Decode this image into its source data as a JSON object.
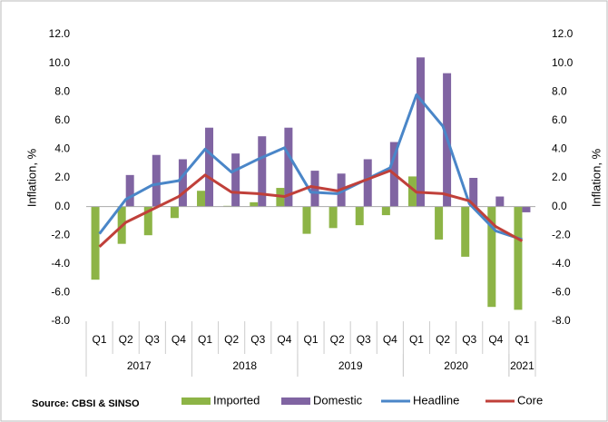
{
  "chart_data": {
    "type": "bar_line",
    "categories": [
      "Q1",
      "Q2",
      "Q3",
      "Q4",
      "Q1",
      "Q2",
      "Q3",
      "Q4",
      "Q1",
      "Q2",
      "Q3",
      "Q4",
      "Q1",
      "Q2",
      "Q3",
      "Q4",
      "Q1"
    ],
    "groups": [
      {
        "label": "2017",
        "count": 4
      },
      {
        "label": "2018",
        "count": 4
      },
      {
        "label": "2019",
        "count": 4
      },
      {
        "label": "2020",
        "count": 4
      },
      {
        "label": "2021",
        "count": 1
      }
    ],
    "series": [
      {
        "name": "Imported",
        "kind": "bar",
        "color": "#8db446",
        "values": [
          -5.1,
          -2.6,
          -2.0,
          -0.8,
          1.1,
          0.05,
          0.3,
          1.3,
          -1.9,
          -1.5,
          -1.3,
          -0.6,
          2.1,
          -2.3,
          -3.5,
          -7.0,
          -7.2
        ]
      },
      {
        "name": "Domestic",
        "kind": "bar",
        "color": "#8064a2",
        "values": [
          0,
          2.2,
          3.6,
          3.3,
          5.5,
          3.7,
          4.9,
          5.5,
          2.5,
          2.3,
          3.3,
          4.5,
          10.4,
          9.3,
          2.0,
          0.7,
          -0.4
        ]
      },
      {
        "name": "Headline",
        "kind": "line",
        "color": "#4a86c8",
        "values": [
          -1.9,
          0.5,
          1.5,
          1.8,
          4.0,
          2.4,
          3.3,
          4.1,
          1.0,
          0.9,
          1.8,
          2.7,
          7.8,
          5.6,
          0.2,
          -1.7,
          -2.3
        ]
      },
      {
        "name": "Core",
        "kind": "line",
        "color": "#c0403a",
        "values": [
          -2.8,
          -1.1,
          -0.2,
          0.7,
          2.2,
          1.0,
          0.9,
          0.7,
          1.4,
          1.1,
          1.8,
          2.5,
          1.0,
          0.9,
          0.4,
          -1.4,
          -2.4
        ]
      }
    ],
    "ylabel": "Inflation, %",
    "y2label": "Inflation, %",
    "ylim": [
      -8,
      12
    ],
    "yticks": [
      {
        "value": -8,
        "label": "-8.0"
      },
      {
        "value": -6,
        "label": "-6.0"
      },
      {
        "value": -4,
        "label": "-4.0"
      },
      {
        "value": -2,
        "label": "-2.0"
      },
      {
        "value": 0,
        "label": "0.0"
      },
      {
        "value": 2,
        "label": "2.0"
      },
      {
        "value": 4,
        "label": "4.0"
      },
      {
        "value": 6,
        "label": "6.0"
      },
      {
        "value": 8,
        "label": "8.0"
      },
      {
        "value": 10,
        "label": "10.0"
      },
      {
        "value": 12,
        "label": "12.0"
      }
    ],
    "y2lim": [
      -8,
      12
    ],
    "y2ticks": [
      {
        "value": -8,
        "label": "-8.0"
      },
      {
        "value": -6,
        "label": "-6.0"
      },
      {
        "value": -4,
        "label": "-4.0"
      },
      {
        "value": -2,
        "label": "-2.0"
      },
      {
        "value": 0,
        "label": "0.0"
      },
      {
        "value": 2,
        "label": "2.0"
      },
      {
        "value": 4,
        "label": "4.0"
      },
      {
        "value": 6,
        "label": "6.0"
      },
      {
        "value": 8,
        "label": "8.0"
      },
      {
        "value": 10,
        "label": "10.0"
      },
      {
        "value": 12,
        "label": "12.0"
      }
    ],
    "source": "Source: CBSI & SINSO",
    "legend": "bottom"
  }
}
